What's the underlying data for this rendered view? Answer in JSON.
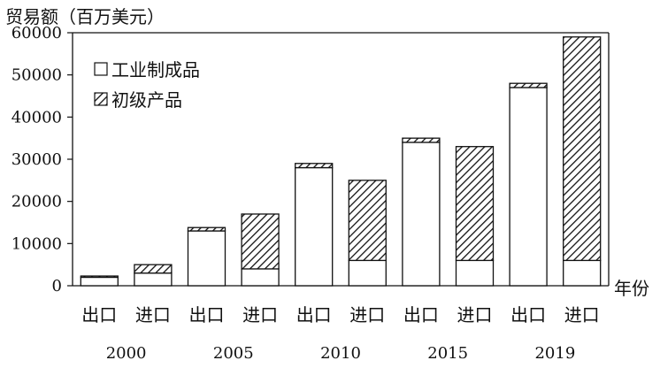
{
  "chart_data": {
    "type": "bar",
    "stacked": true,
    "title": "",
    "ylabel": "贸易额（百万美元）",
    "xlabel": "年份",
    "ylim": [
      0,
      60000
    ],
    "yticks": [
      0,
      10000,
      20000,
      30000,
      40000,
      50000,
      60000
    ],
    "grid": false,
    "legend_position": "top-left",
    "groups": [
      {
        "year": "2000",
        "bars": [
          {
            "label": "出口",
            "industrial": 2000,
            "primary": 300
          },
          {
            "label": "进口",
            "industrial": 3000,
            "primary": 2000
          }
        ]
      },
      {
        "year": "2005",
        "bars": [
          {
            "label": "出口",
            "industrial": 13000,
            "primary": 800
          },
          {
            "label": "进口",
            "industrial": 4000,
            "primary": 13000
          }
        ]
      },
      {
        "year": "2010",
        "bars": [
          {
            "label": "出口",
            "industrial": 28000,
            "primary": 1000
          },
          {
            "label": "进口",
            "industrial": 6000,
            "primary": 19000
          }
        ]
      },
      {
        "year": "2015",
        "bars": [
          {
            "label": "出口",
            "industrial": 34000,
            "primary": 1000
          },
          {
            "label": "进口",
            "industrial": 6000,
            "primary": 27000
          }
        ]
      },
      {
        "year": "2019",
        "bars": [
          {
            "label": "出口",
            "industrial": 47000,
            "primary": 1000
          },
          {
            "label": "进口",
            "industrial": 6000,
            "primary": 53000
          }
        ]
      }
    ],
    "series": [
      {
        "key": "industrial",
        "name": "工业制成品",
        "fill": "#ffffff"
      },
      {
        "key": "primary",
        "name": "初级产品",
        "fill": "hatch"
      }
    ]
  }
}
